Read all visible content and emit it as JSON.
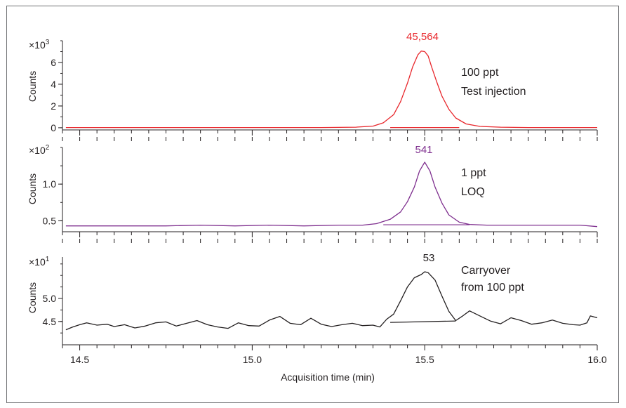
{
  "chart_data": [
    {
      "type": "line",
      "panel": "top",
      "color": "#e8262b",
      "ylabel": "Counts",
      "scale_base": "×10",
      "scale_exp": "3",
      "ylim": [
        -0.2,
        8.0
      ],
      "yticks": [
        0,
        2,
        4,
        6
      ],
      "yticks_labels": [
        "0",
        "2",
        "4",
        "6"
      ],
      "peak_label": "45,564",
      "annotation_lines": [
        "100 ppt",
        "Test injection"
      ],
      "series": [
        {
          "x": [
            14.46,
            14.6,
            14.8,
            15.0,
            15.2,
            15.3,
            15.35,
            15.38,
            15.41,
            15.43,
            15.45,
            15.465,
            15.48,
            15.49,
            15.5,
            15.51,
            15.52,
            15.535,
            15.55,
            15.57,
            15.59,
            15.62,
            15.66,
            15.72,
            15.8,
            16.0
          ],
          "y": [
            0.02,
            0.02,
            0.02,
            0.02,
            0.02,
            0.05,
            0.15,
            0.45,
            1.2,
            2.4,
            4.1,
            5.6,
            6.7,
            7.05,
            7.0,
            6.6,
            5.6,
            4.2,
            2.9,
            1.7,
            0.9,
            0.35,
            0.12,
            0.05,
            0.02,
            0.02
          ]
        }
      ],
      "baseline": {
        "x": [
          15.4,
          15.6
        ],
        "y": [
          0.02,
          0.02
        ]
      }
    },
    {
      "type": "line",
      "panel": "middle",
      "color": "#7e2e8e",
      "ylabel": "Counts",
      "scale_base": "×10",
      "scale_exp": "2",
      "ylim": [
        0.35,
        1.5
      ],
      "yticks": [
        0.5,
        1.0
      ],
      "yticks_labels": [
        "0.5",
        "1.0"
      ],
      "peak_label": "541",
      "annotation_lines": [
        "1 ppt",
        "LOQ"
      ],
      "series": [
        {
          "x": [
            14.46,
            14.55,
            14.65,
            14.75,
            14.85,
            14.95,
            15.05,
            15.15,
            15.25,
            15.32,
            15.36,
            15.4,
            15.43,
            15.45,
            15.47,
            15.485,
            15.5,
            15.515,
            15.53,
            15.55,
            15.57,
            15.6,
            15.63,
            15.68,
            15.75,
            15.85,
            15.95,
            16.0
          ],
          "y": [
            0.43,
            0.43,
            0.43,
            0.43,
            0.44,
            0.43,
            0.44,
            0.43,
            0.44,
            0.44,
            0.46,
            0.52,
            0.62,
            0.76,
            0.96,
            1.18,
            1.3,
            1.18,
            0.96,
            0.74,
            0.58,
            0.48,
            0.45,
            0.44,
            0.44,
            0.44,
            0.44,
            0.42
          ]
        }
      ],
      "baseline": {
        "x": [
          15.38,
          15.63
        ],
        "y": [
          0.445,
          0.445
        ]
      }
    },
    {
      "type": "line",
      "panel": "bottom",
      "color": "#231f20",
      "ylabel": "Counts",
      "scale_base": "×10",
      "scale_exp": "1",
      "ylim": [
        4.1,
        5.9
      ],
      "yticks": [
        4.5,
        5.0
      ],
      "yticks_labels": [
        "4.5",
        "5.0"
      ],
      "peak_label": "53",
      "annotation_lines": [
        "Carryover",
        "from 100 ppt"
      ],
      "xlabel": "Acquisition time (min)",
      "xlim": [
        14.45,
        16.0
      ],
      "xticks": [
        14.5,
        15.0,
        15.5,
        16.0
      ],
      "xticks_labels": [
        "14.5",
        "15.0",
        "15.5",
        "16.0"
      ],
      "series": [
        {
          "x": [
            14.46,
            14.48,
            14.5,
            14.52,
            14.55,
            14.58,
            14.6,
            14.63,
            14.66,
            14.69,
            14.72,
            14.75,
            14.78,
            14.81,
            14.84,
            14.87,
            14.9,
            14.93,
            14.96,
            14.99,
            15.02,
            15.05,
            15.08,
            15.11,
            15.14,
            15.17,
            15.2,
            15.23,
            15.26,
            15.29,
            15.32,
            15.35,
            15.37,
            15.39,
            15.41,
            15.43,
            15.45,
            15.47,
            15.49,
            15.5,
            15.51,
            15.53,
            15.55,
            15.57,
            15.59,
            15.61,
            15.63,
            15.66,
            15.69,
            15.72,
            15.75,
            15.78,
            15.81,
            15.84,
            15.87,
            15.9,
            15.93,
            15.95,
            15.97,
            15.98,
            16.0
          ],
          "y": [
            4.32,
            4.38,
            4.43,
            4.47,
            4.42,
            4.44,
            4.39,
            4.43,
            4.36,
            4.4,
            4.47,
            4.49,
            4.4,
            4.46,
            4.52,
            4.43,
            4.38,
            4.35,
            4.47,
            4.41,
            4.4,
            4.53,
            4.61,
            4.46,
            4.43,
            4.57,
            4.44,
            4.39,
            4.43,
            4.46,
            4.41,
            4.42,
            4.38,
            4.55,
            4.66,
            4.95,
            5.25,
            5.45,
            5.52,
            5.58,
            5.56,
            5.4,
            5.05,
            4.72,
            4.52,
            4.62,
            4.73,
            4.62,
            4.51,
            4.45,
            4.58,
            4.52,
            4.44,
            4.47,
            4.53,
            4.46,
            4.43,
            4.42,
            4.47,
            4.62,
            4.58
          ]
        }
      ],
      "baseline": {
        "x": [
          15.4,
          15.59
        ],
        "y": [
          4.48,
          4.51
        ]
      }
    }
  ]
}
